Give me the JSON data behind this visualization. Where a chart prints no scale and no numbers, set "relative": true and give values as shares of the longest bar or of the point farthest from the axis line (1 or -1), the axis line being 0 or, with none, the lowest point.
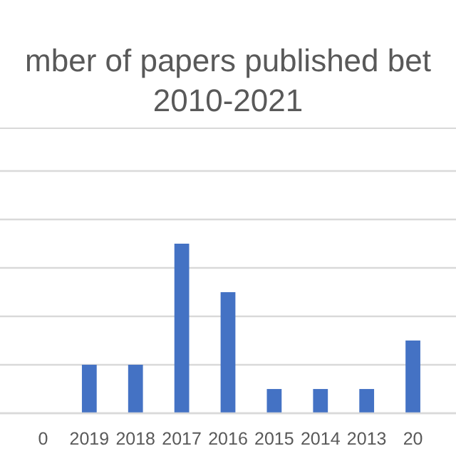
{
  "chart_data": {
    "type": "bar",
    "title": "mber of papers published bet\n2010-2021",
    "relative": true,
    "color": "#4472c4",
    "grid": "y",
    "categories": [
      "0",
      "2019",
      "2018",
      "2017",
      "2016",
      "2015",
      "2014",
      "2013",
      "20"
    ],
    "values": [
      0,
      0.286,
      0.286,
      1,
      0.714,
      0.143,
      0.143,
      0.143,
      0.429
    ]
  }
}
